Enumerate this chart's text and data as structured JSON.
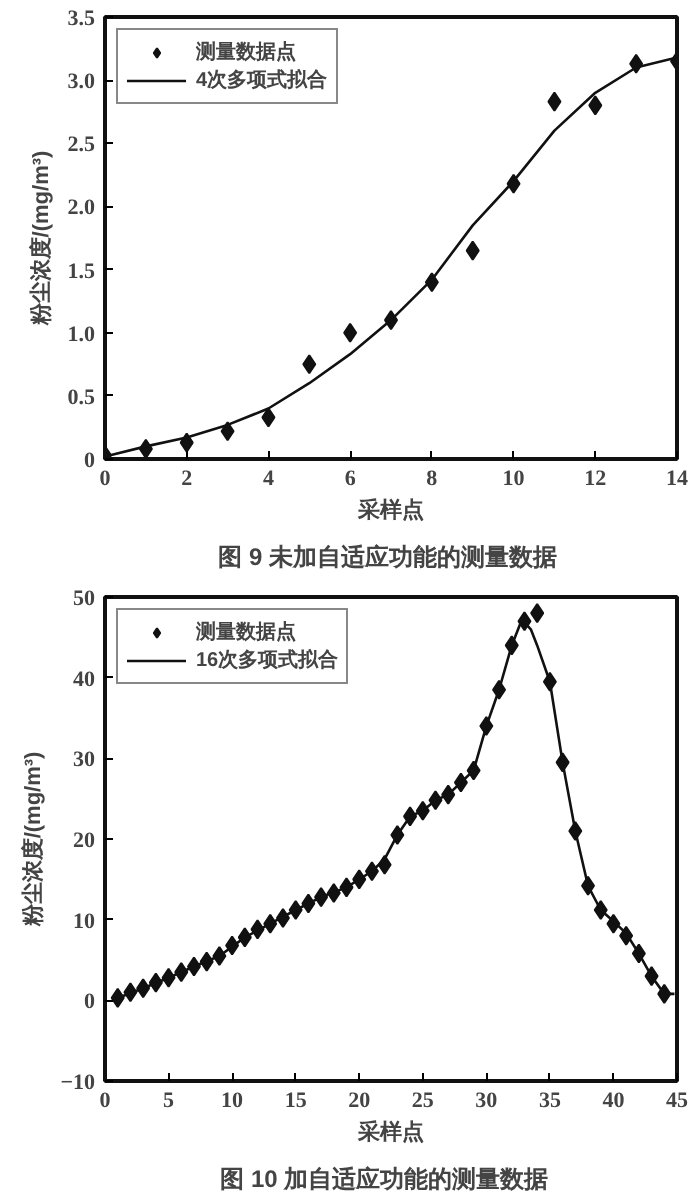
{
  "chart_data": [
    {
      "type": "scatter",
      "title": "图 9  未加自适应功能的测量数据",
      "xlabel": "采样点",
      "ylabel": "粉尘浓度/(mg/m³)",
      "xlim": [
        0,
        14
      ],
      "ylim": [
        0,
        3.5
      ],
      "xticks": [
        0,
        2,
        4,
        6,
        8,
        10,
        12,
        14
      ],
      "yticks": [
        0,
        0.5,
        {
          "value": 1,
          "label": "1.0"
        },
        1.5,
        {
          "value": 2,
          "label": "2.0"
        },
        2.5,
        {
          "value": 3,
          "label": "3.0"
        },
        3.5
      ],
      "grid": false,
      "legend": "top left",
      "color": "#111111",
      "series": [
        {
          "name": "测量数据点",
          "marker": "diamond",
          "color": "#111111",
          "x": [
            0,
            1,
            2,
            3,
            4,
            5,
            6,
            7,
            8,
            9,
            10,
            11,
            12,
            13,
            14
          ],
          "values": [
            0.03,
            0.08,
            0.13,
            0.22,
            0.33,
            0.75,
            1.0,
            1.1,
            1.4,
            1.65,
            2.18,
            2.83,
            2.8,
            3.13,
            3.15
          ]
        },
        {
          "name": "4次多项式拟合",
          "type": "line",
          "line_style": "solid",
          "color": "#111111",
          "x": [
            0,
            1,
            2,
            3,
            4,
            5,
            6,
            7,
            8,
            9,
            10,
            11,
            12,
            13,
            14
          ],
          "values": [
            0.02,
            0.1,
            0.17,
            0.27,
            0.4,
            0.6,
            0.83,
            1.1,
            1.42,
            1.85,
            2.2,
            2.6,
            2.9,
            3.1,
            3.18
          ]
        }
      ]
    },
    {
      "type": "scatter",
      "title": "图 10   加自适应功能的测量数据",
      "xlabel": "采样点",
      "ylabel": "粉尘浓度/(mg/m³)",
      "xlim": [
        0,
        45
      ],
      "ylim": [
        -10,
        50
      ],
      "xticks": [
        0,
        5,
        10,
        15,
        20,
        25,
        30,
        35,
        40,
        45
      ],
      "yticks": [
        -10,
        0,
        10,
        20,
        30,
        40,
        50
      ],
      "grid": false,
      "legend": "top left",
      "color": "#111111",
      "series": [
        {
          "name": "测量数据点",
          "marker": "diamond",
          "color": "#111111",
          "x": [
            1,
            2,
            3,
            4,
            5,
            6,
            7,
            8,
            9,
            10,
            11,
            12,
            13,
            14,
            15,
            16,
            17,
            18,
            19,
            20,
            21,
            22,
            23,
            24,
            25,
            26,
            27,
            28,
            29,
            30,
            31,
            32,
            33,
            34,
            35,
            36,
            37,
            38,
            39,
            40,
            41,
            42,
            43,
            44
          ],
          "values": [
            0.3,
            1,
            1.5,
            2.2,
            2.8,
            3.5,
            4.2,
            4.8,
            5.5,
            6.8,
            7.8,
            8.8,
            9.5,
            10.2,
            11.2,
            12,
            12.8,
            13.3,
            14,
            15,
            16,
            16.8,
            20.5,
            22.8,
            23.5,
            24.8,
            25.5,
            27,
            28.5,
            34,
            38.5,
            44,
            47,
            48,
            39.5,
            29.5,
            21,
            14.2,
            11.2,
            9.5,
            8,
            5.8,
            3,
            0.8
          ]
        },
        {
          "name": "16次多项式拟合",
          "type": "line",
          "line_style": "solid",
          "color": "#111111",
          "x": [
            1,
            3,
            5,
            7,
            9,
            11,
            13,
            15,
            17,
            19,
            21,
            22,
            23,
            24,
            25,
            26,
            27,
            28,
            29,
            30,
            31,
            32,
            32.8,
            33.5,
            34,
            35,
            36,
            37,
            38,
            39,
            40,
            41,
            42,
            43,
            44,
            44.8
          ],
          "values": [
            0.3,
            1.5,
            2.8,
            4.2,
            5.5,
            7.8,
            9.5,
            11.2,
            12.8,
            14,
            16,
            17.5,
            20.5,
            22.8,
            23.5,
            24.8,
            25.5,
            27,
            28.5,
            34,
            38.5,
            44,
            47.2,
            46,
            44,
            39.5,
            29.5,
            21,
            14.2,
            11.2,
            9.8,
            8.3,
            5.8,
            3,
            0.8,
            0.8
          ]
        }
      ]
    }
  ]
}
